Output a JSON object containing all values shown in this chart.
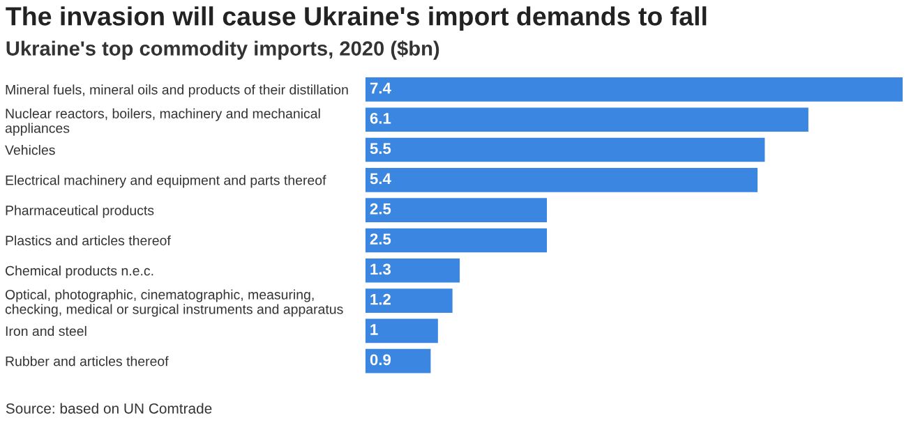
{
  "chart_data": {
    "type": "bar",
    "orientation": "horizontal",
    "title": "The invasion will cause Ukraine's import demands to fall",
    "subtitle": "Ukraine's top commodity imports, 2020 ($bn)",
    "categories": [
      "Mineral fuels, mineral oils and products of their distillation",
      "Nuclear reactors, boilers, machinery and mechanical\nappliances",
      "Vehicles",
      "Electrical machinery and equipment and parts thereof",
      "Pharmaceutical products",
      "Plastics and articles thereof",
      "Chemical products n.e.c.",
      "Optical, photographic, cinematographic, measuring,\nchecking, medical or surgical instruments and apparatus",
      "Iron and steel",
      "Rubber and articles thereof"
    ],
    "values": [
      7.4,
      6.1,
      5.5,
      5.4,
      2.5,
      2.5,
      1.3,
      1.2,
      1,
      0.9
    ],
    "value_labels": [
      "7.4",
      "6.1",
      "5.5",
      "5.4",
      "2.5",
      "2.5",
      "1.3",
      "1.2",
      "1",
      "0.9"
    ],
    "color": "#3a86e0",
    "tick_labels": "y",
    "annotations": [
      "Source: based on UN Comtrade"
    ]
  }
}
